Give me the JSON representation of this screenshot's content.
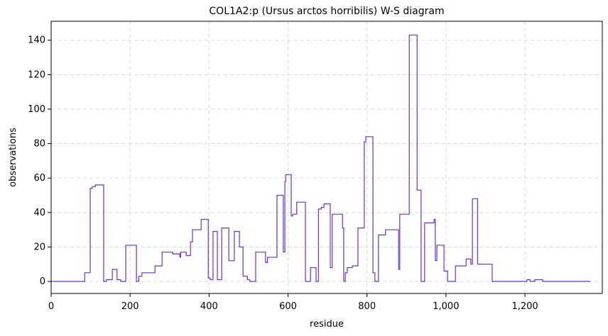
{
  "chart_data": {
    "type": "line",
    "step": "post",
    "title": "COL1A2:p (Ursus arctos horribilis) W-S diagram",
    "xlabel": "residue",
    "ylabel": "observations",
    "color": "#6633cc",
    "grid": true,
    "xlim": [
      0,
      1396
    ],
    "ylim": [
      -7,
      151
    ],
    "xticks": [
      0,
      200,
      400,
      600,
      800,
      {
        "value": 1000,
        "label": "1,000"
      },
      {
        "value": 1200,
        "label": "1,200"
      }
    ],
    "yticks": [
      0,
      20,
      40,
      60,
      80,
      100,
      120,
      140
    ],
    "x": [
      0,
      85,
      99,
      104,
      112,
      133,
      140,
      155,
      167,
      176,
      189,
      216,
      222,
      230,
      263,
      281,
      308,
      326,
      328,
      342,
      353,
      358,
      380,
      398,
      403,
      410,
      421,
      432,
      450,
      464,
      477,
      486,
      497,
      503,
      518,
      543,
      548,
      572,
      588,
      592,
      594,
      608,
      612,
      622,
      644,
      657,
      671,
      677,
      684,
      691,
      707,
      712,
      738,
      741,
      745,
      750,
      763,
      777,
      793,
      797,
      815,
      820,
      829,
      847,
      880,
      883,
      907,
      927,
      937,
      946,
      970,
      973,
      977,
      995,
      1004,
      1024,
      1051,
      1063,
      1067,
      1080,
      1117,
      1205,
      1213,
      1225,
      1245,
      1366
    ],
    "values": [
      0,
      5,
      54,
      55,
      56,
      0,
      1,
      7,
      1,
      0,
      21,
      0,
      3,
      5,
      9,
      17,
      16,
      14,
      17,
      15,
      23,
      30,
      36,
      2,
      1,
      29,
      1,
      31,
      12,
      29,
      20,
      3,
      1,
      0,
      17,
      11,
      14,
      50,
      17,
      58,
      62,
      38,
      39,
      46,
      0,
      8,
      0,
      42,
      43,
      45,
      8,
      39,
      31,
      0,
      5,
      8,
      9,
      31,
      81,
      84,
      5,
      0,
      27,
      30,
      7,
      39,
      143,
      53,
      0,
      34,
      36,
      12,
      21,
      6,
      0,
      9,
      13,
      10,
      48,
      10,
      0,
      1,
      0,
      1,
      0,
      0
    ]
  }
}
